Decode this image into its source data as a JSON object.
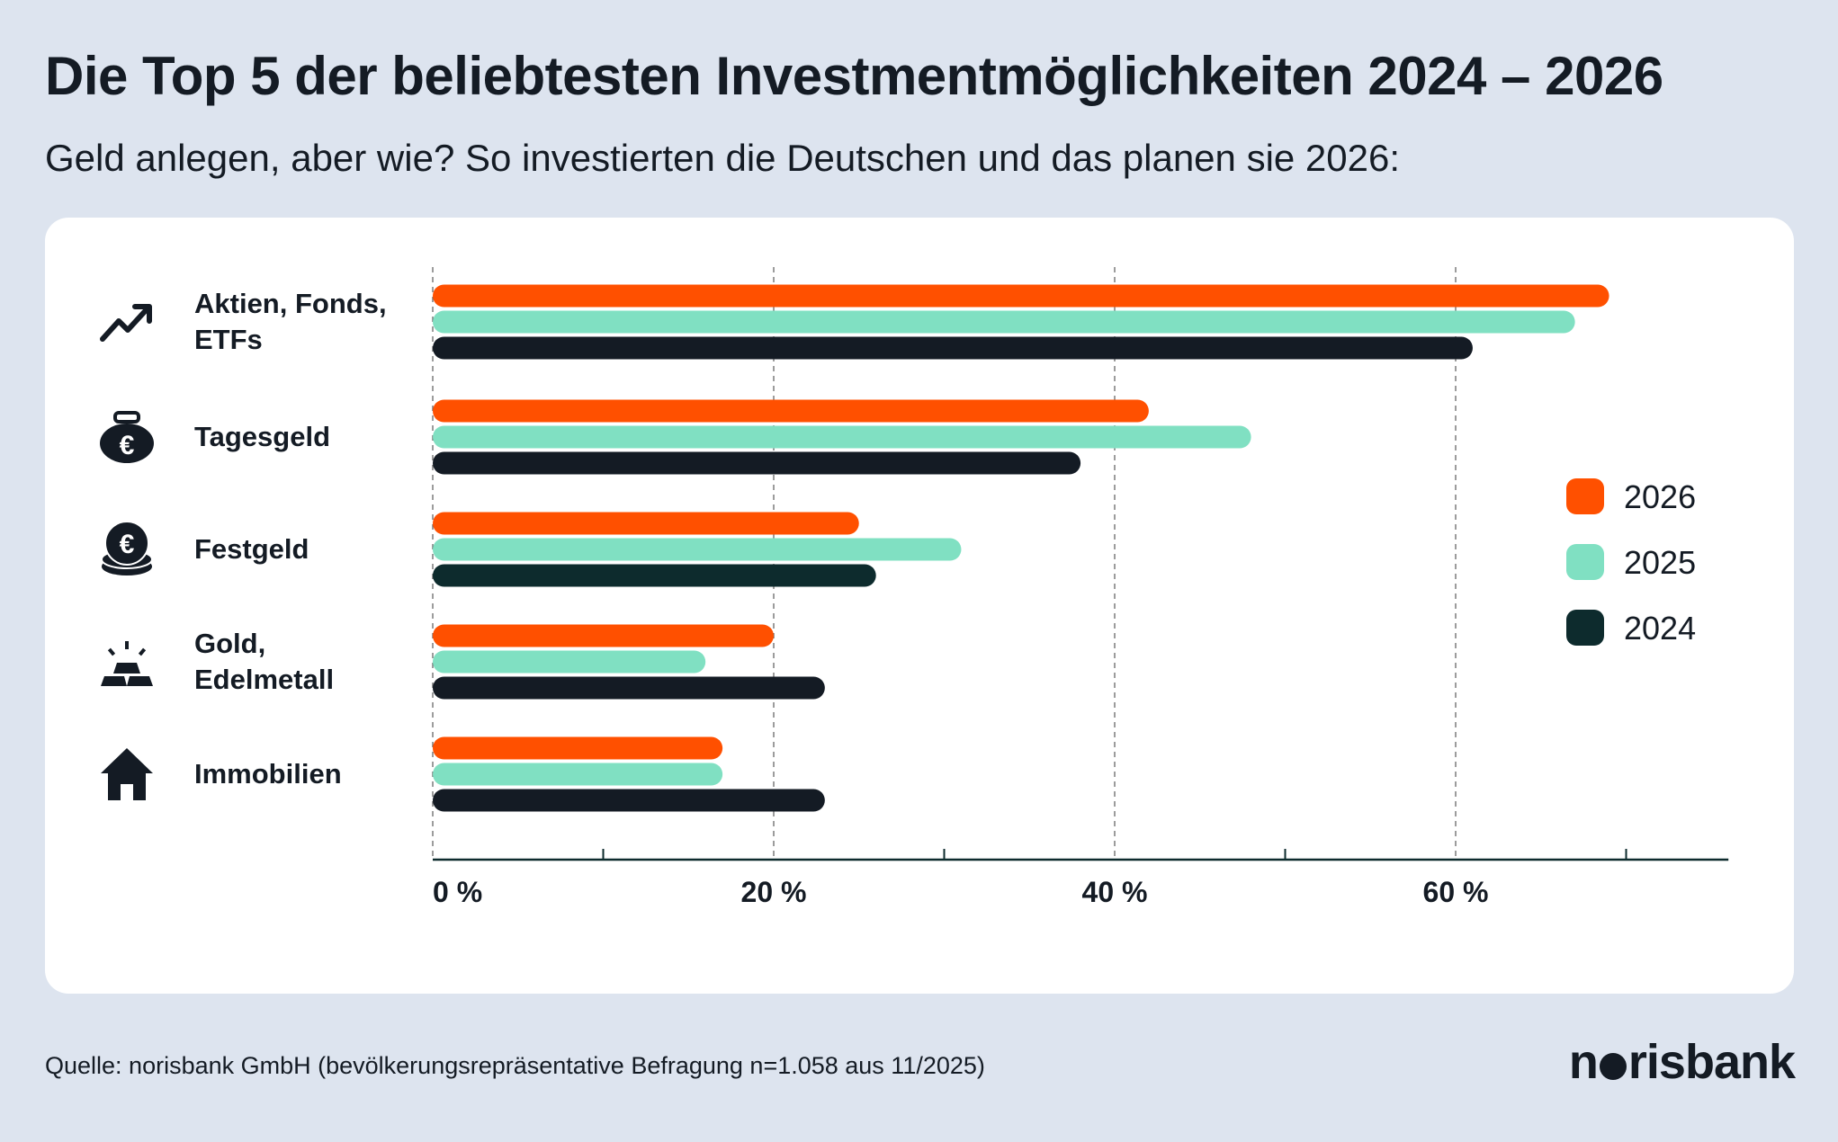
{
  "header": {
    "title": "Die Top 5 der beliebtesten Investmentmöglichkeiten 2024 – 2026",
    "subtitle": "Geld anlegen, aber wie? So investierten die Deutschen und das planen sie 2026:"
  },
  "chart_data": {
    "type": "bar",
    "orientation": "horizontal",
    "categories": [
      "Aktien, Fonds, ETFs",
      "Tagesgeld",
      "Festgeld",
      "Gold, Edelmetall",
      "Immobilien"
    ],
    "category_icons": [
      "trending-up-icon",
      "coin-purse-euro-icon",
      "coin-stack-euro-icon",
      "gold-bars-icon",
      "house-icon"
    ],
    "series": [
      {
        "name": "2026",
        "color": "#ff5000",
        "values": [
          69,
          42,
          25,
          20,
          17
        ]
      },
      {
        "name": "2025",
        "color": "#80e0c2",
        "values": [
          67,
          48,
          31,
          16,
          17
        ]
      },
      {
        "name": "2024",
        "color": "#0d2b2d",
        "values": [
          61,
          38,
          26,
          23,
          23
        ]
      }
    ],
    "xlim": [
      0,
      76
    ],
    "x_ticks": [
      0,
      20,
      40,
      60
    ],
    "x_tick_labels": [
      "0 %",
      "20 %",
      "40 %",
      "60 %"
    ],
    "minor_ticks": [
      10,
      30,
      50,
      70
    ],
    "grid": true,
    "legend_position": "right",
    "unit": "%"
  },
  "footer": {
    "source": "Quelle: norisbank GmbH (bevölkerungsrepräsentative Befragung n=1.058 aus 11/2025)",
    "logo": "norisbank"
  }
}
